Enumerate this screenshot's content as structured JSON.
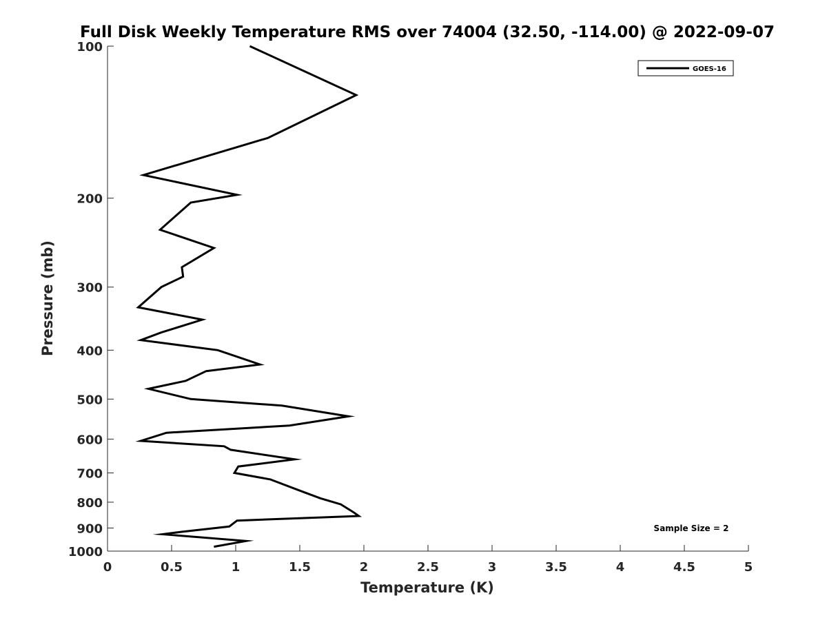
{
  "chart_data": {
    "type": "line",
    "title": "Full Disk Weekly Temperature RMS over 74004 (32.50, -114.00) @ 2022-09-07",
    "xlabel": "Temperature (K)",
    "ylabel": "Pressure (mb)",
    "xlim": [
      0,
      5
    ],
    "ylim": [
      100,
      1000
    ],
    "y_scale": "log",
    "y_reversed": true,
    "grid": false,
    "legend_position": "top-right",
    "xticks": [
      "0",
      "0.5",
      "1",
      "1.5",
      "2",
      "2.5",
      "3",
      "3.5",
      "4",
      "4.5",
      "5"
    ],
    "yticks": [
      "100",
      "200",
      "300",
      "400",
      "500",
      "600",
      "700",
      "800",
      "900",
      "1000"
    ],
    "annotation": "Sample Size = 2",
    "series": [
      {
        "name": "GOES-16",
        "color": "#000000",
        "points": [
          [
            1.11,
            100
          ],
          [
            1.94,
            125
          ],
          [
            1.25,
            152
          ],
          [
            0.28,
            180
          ],
          [
            1.01,
            197
          ],
          [
            0.65,
            204
          ],
          [
            0.41,
            231
          ],
          [
            0.83,
            251
          ],
          [
            0.58,
            274
          ],
          [
            0.59,
            286
          ],
          [
            0.42,
            300
          ],
          [
            0.24,
            329
          ],
          [
            0.74,
            348
          ],
          [
            0.42,
            369
          ],
          [
            0.26,
            382
          ],
          [
            0.86,
            400
          ],
          [
            1.19,
            427
          ],
          [
            0.77,
            440
          ],
          [
            0.61,
            460
          ],
          [
            0.32,
            477
          ],
          [
            0.65,
            500
          ],
          [
            1.36,
            515
          ],
          [
            1.88,
            541
          ],
          [
            1.42,
            564
          ],
          [
            0.46,
            583
          ],
          [
            0.26,
            605
          ],
          [
            0.91,
            620
          ],
          [
            0.96,
            630
          ],
          [
            1.46,
            658
          ],
          [
            1.02,
            680
          ],
          [
            0.99,
            700
          ],
          [
            1.27,
            721
          ],
          [
            1.5,
            759
          ],
          [
            1.66,
            786
          ],
          [
            1.82,
            808
          ],
          [
            1.92,
            838
          ],
          [
            1.96,
            852
          ],
          [
            1.01,
            870
          ],
          [
            0.95,
            894
          ],
          [
            0.59,
            915
          ],
          [
            0.43,
            926
          ],
          [
            1.08,
            955
          ],
          [
            0.83,
            980
          ]
        ]
      }
    ]
  }
}
